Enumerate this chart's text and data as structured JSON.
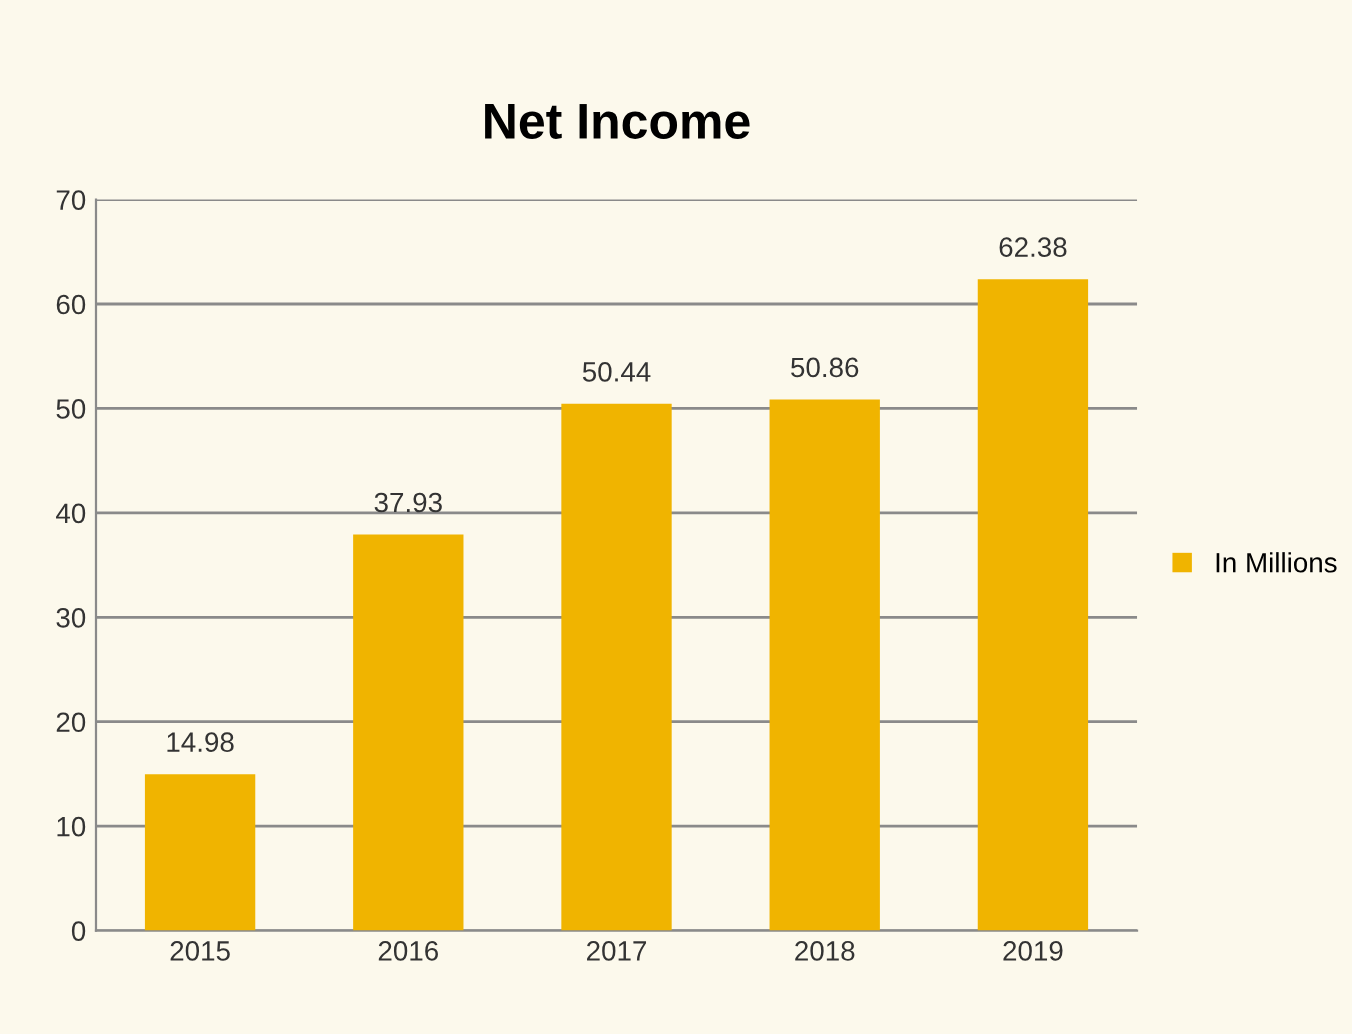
{
  "chart_data": {
    "type": "bar",
    "title": "Net Income",
    "categories": [
      "2015",
      "2016",
      "2017",
      "2018",
      "2019"
    ],
    "series": [
      {
        "name": "In Millions",
        "color": "#f0b400",
        "values": [
          14.98,
          37.93,
          50.44,
          50.86,
          62.38
        ]
      }
    ],
    "value_labels": [
      "14.98",
      "37.93",
      "50.44",
      "50.86",
      "62.38"
    ],
    "ylim": [
      0,
      70
    ],
    "yticks": [
      0,
      10,
      20,
      30,
      40,
      50,
      60,
      70
    ],
    "grid": "y",
    "legend": "right"
  }
}
